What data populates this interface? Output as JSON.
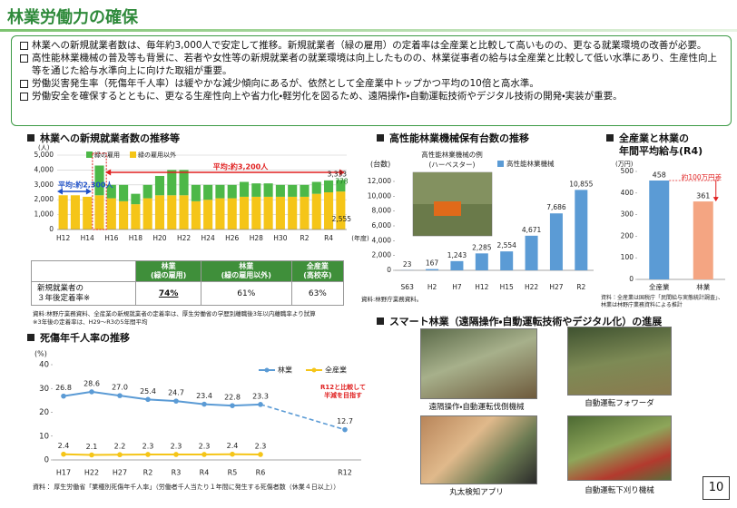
{
  "title": "林業労働力の確保",
  "bullets": [
    "林業への新規就業者数は、毎年約3,000人で安定して推移。新規就業者（緑の雇用）の定着率は全産業と比較して高いものの、更なる就業環境の改善が必要。",
    "高性能林業機械の普及等も背景に、若者や女性等の新規就業者の就業環境は向上したものの、林業従事者の給与は全産業と比較して低い水準にあり、生産性向上等を通じた給与水準向上に向けた取組が重要。",
    "労働災害発生率（死傷年千人率）は緩やかな減少傾向にあるが、依然として全産業中トップかつ平均の10倍と高水準。",
    "労働安全を確保するとともに、更なる生産性向上や省力化・軽労化を図るため、遠隔操作・自動運転技術やデジタル技術の開発・実装が重要。"
  ],
  "chart_data": [
    {
      "type": "stacked_bar",
      "title": "林業への新規就業者数の推移等",
      "y_unit": "(人)",
      "x_unit": "(年度)",
      "categories": [
        "H12",
        null,
        "H14",
        null,
        "H16",
        null,
        "H18",
        null,
        "H20",
        null,
        "H22",
        null,
        "H24",
        null,
        "H26",
        null,
        "H28",
        null,
        "H30",
        null,
        "R2",
        null,
        "R4",
        null
      ],
      "series": [
        {
          "name": "緑の雇用",
          "color": "#4db848",
          "values": [
            null,
            null,
            null,
            2000,
            900,
            1100,
            700,
            900,
            1300,
            1700,
            1700,
            1100,
            1000,
            900,
            900,
            1000,
            900,
            900,
            800,
            800,
            800,
            800,
            800,
            778
          ],
          "value_labels": [
            null,
            null,
            null,
            null,
            null,
            null,
            null,
            null,
            null,
            null,
            null,
            null,
            null,
            null,
            null,
            null,
            null,
            null,
            null,
            null,
            null,
            null,
            null,
            "778"
          ]
        },
        {
          "name": "緑の雇用以外",
          "color": "#f5c518",
          "values": [
            2300,
            2300,
            2200,
            2300,
            2100,
            1900,
            1700,
            2100,
            2300,
            2300,
            2300,
            1900,
            2000,
            2100,
            2100,
            2200,
            2200,
            2200,
            2200,
            2200,
            2200,
            2400,
            2500,
            2555
          ],
          "value_labels": [
            null,
            null,
            null,
            null,
            null,
            null,
            null,
            null,
            null,
            null,
            null,
            null,
            null,
            null,
            null,
            null,
            null,
            null,
            null,
            null,
            null,
            null,
            null,
            "2,555"
          ]
        }
      ],
      "ylim": [
        0,
        5000
      ],
      "yticks": [
        0,
        {
          "value": 1000,
          "label": "1,000"
        },
        {
          "value": 2000,
          "label": "2,000"
        },
        {
          "value": 3000,
          "label": "3,000"
        },
        {
          "value": 4000,
          "label": "4,000"
        },
        {
          "value": 5000,
          "label": "5,000"
        }
      ],
      "grid": true,
      "annotations": [
        "平均:約3,200人",
        "平均:約2,300人",
        "3,333"
      ]
    },
    {
      "type": "bar",
      "title": "高性能林業機械保有台数の推移",
      "y_unit": "(台数)",
      "photo_caption": [
        "高性能林業機械の例",
        "(ハーベスター)"
      ],
      "categories": [
        "S63",
        "H2",
        "H7",
        "H12",
        "H15",
        "H22",
        "H27",
        "R2"
      ],
      "series": [
        {
          "name": "高性能林業機械",
          "color": "#5b9bd5",
          "values": [
            23,
            167,
            1243,
            2285,
            2554,
            4671,
            7686,
            10855
          ],
          "value_labels": [
            "23",
            "167",
            "1,243",
            "2,285",
            "2,554",
            "4,671",
            "7,686",
            "10,855"
          ]
        }
      ],
      "ylim": [
        0,
        12000
      ],
      "yticks": [
        0,
        {
          "value": 2000,
          "label": "2,000"
        },
        {
          "value": 4000,
          "label": "4,000"
        },
        {
          "value": 6000,
          "label": "6,000"
        },
        {
          "value": 8000,
          "label": "8,000"
        },
        {
          "value": 10000,
          "label": "10,000"
        },
        {
          "value": 12000,
          "label": "12,000"
        }
      ],
      "grid": false,
      "source": "資料:林野庁業務資料。"
    },
    {
      "type": "bar",
      "title": [
        "全産業と林業の",
        "年間平均給与(R4)"
      ],
      "y_unit": "(万円)",
      "categories": [
        "全産業",
        "林業"
      ],
      "values": [
        458,
        361
      ],
      "colors": [
        "#5b9bd5",
        "#f4a582"
      ],
      "ylim": [
        0,
        500
      ],
      "yticks": [
        0,
        100,
        200,
        300,
        400,
        500
      ],
      "grid": false,
      "annotations": [
        "約100万円差"
      ],
      "source": [
        "資料：全産業は国税庁「民間給与実態統計調査」、",
        "林業は林野庁業務資料による推計"
      ]
    },
    {
      "type": "line",
      "title": "死傷年千人率の推移",
      "y_unit": "(%)",
      "categories": [
        "H17",
        "H22",
        "H27",
        "R2",
        "R3",
        "R4",
        "R5",
        "R6",
        null,
        null,
        "R12"
      ],
      "series": [
        {
          "name": "林業",
          "color": "#5b9bd5",
          "values": [
            26.8,
            28.6,
            27.0,
            25.4,
            24.7,
            23.4,
            22.8,
            23.3,
            null,
            null,
            12.7
          ],
          "value_labels": [
            "26.8",
            "28.6",
            "27.0",
            "25.4",
            "24.7",
            "23.4",
            "22.8",
            "23.3",
            null,
            null,
            "12.7"
          ]
        },
        {
          "name": "全産業",
          "color": "#f5c518",
          "values": [
            2.4,
            2.1,
            2.2,
            2.3,
            2.3,
            2.3,
            2.4,
            2.3,
            null,
            null,
            null
          ],
          "value_labels": [
            "2.4",
            "2.1",
            "2.2",
            "2.3",
            "2.3",
            "2.3",
            "2.4",
            "2.3",
            null,
            null,
            null
          ]
        }
      ],
      "ylim": [
        0,
        40
      ],
      "yticks": [
        0,
        10,
        20,
        30,
        40
      ],
      "grid": false,
      "annotations": [
        "R12と比較して",
        "半減を目指す"
      ],
      "source": "資料： 厚生労働省「業種別死傷年千人率」（労働者千人当たり１年間に発生する死傷者数（休業４日以上））"
    }
  ],
  "table": {
    "columns": [
      [
        "林業",
        "(緑の雇用)"
      ],
      [
        "林業",
        "(緑の雇用以外)"
      ],
      [
        "全産業",
        "(高校卒)"
      ]
    ],
    "row_label": [
      "新規就業者の",
      "３年後定着率※"
    ],
    "row": [
      "74%",
      "61%",
      "63%"
    ],
    "notes": [
      "資料:林野庁業務資料、全産業の新規就業者の定着率は、厚生労働省の学歴別離職後3年以内離職率より試算",
      "※3年後の定着率は、H29～R3の5年間平均"
    ]
  },
  "smart": {
    "title": "スマート林業（遠隔操作・自動運転技術やデジタル化）の進展",
    "photos": [
      "遠隔操作・自動運転伐倒機械",
      "自動運転フォワーダ",
      "丸太検知アプリ",
      "自動運転下刈り機械"
    ]
  },
  "page_number": "10"
}
